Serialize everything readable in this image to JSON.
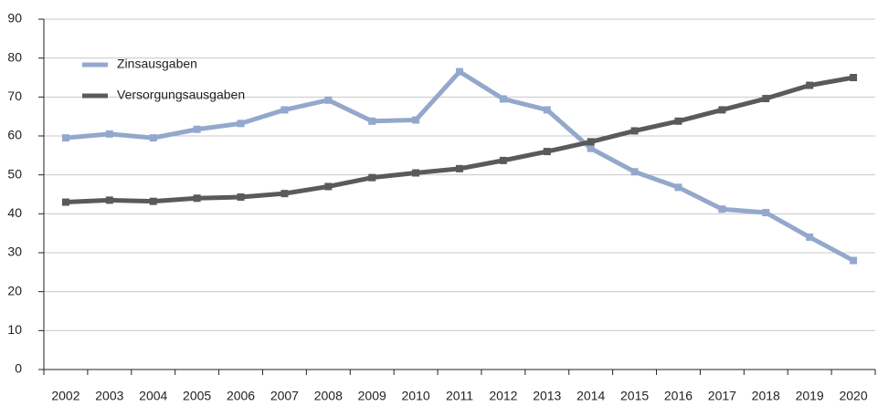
{
  "chart_data": {
    "type": "line",
    "categories": [
      "2002",
      "2003",
      "2004",
      "2005",
      "2006",
      "2007",
      "2008",
      "2009",
      "2010",
      "2011",
      "2012",
      "2013",
      "2014",
      "2015",
      "2016",
      "2017",
      "2018",
      "2019",
      "2020"
    ],
    "series": [
      {
        "name": "Zinsausgaben",
        "color": "#93a8cc",
        "values": [
          59.5,
          60.5,
          59.5,
          61.7,
          63.2,
          66.7,
          69.2,
          63.8,
          64.1,
          76.5,
          69.5,
          66.7,
          56.8,
          50.8,
          46.8,
          41.2,
          40.3,
          34,
          28
        ]
      },
      {
        "name": "Versorgungsausgaben",
        "color": "#5a5a5a",
        "values": [
          43,
          43.5,
          43.2,
          44,
          44.3,
          45.2,
          47,
          49.3,
          50.5,
          51.6,
          53.7,
          56,
          58.5,
          61.3,
          63.8,
          66.7,
          69.6,
          73,
          75
        ]
      }
    ],
    "ylim": [
      0,
      90
    ],
    "yticks": [
      0,
      10,
      20,
      30,
      40,
      50,
      60,
      70,
      80,
      90
    ],
    "grid": true,
    "legend": "top-left"
  }
}
